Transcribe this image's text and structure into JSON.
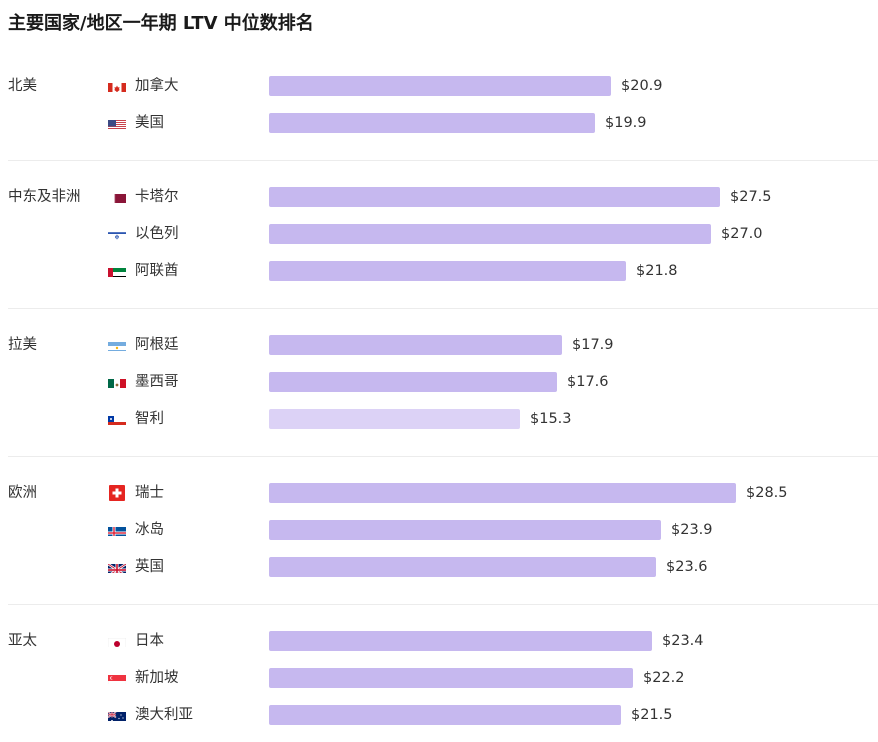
{
  "title": "主要国家/地区一年期 LTV 中位数排名",
  "colors": {
    "bar": "#c6b8ef",
    "bar_highlight_light": "#dcd2f6",
    "divider": "#ececec"
  },
  "groups": [
    {
      "region": "北美",
      "rows": [
        {
          "flag": "flag-canada-icon",
          "country": "加拿大",
          "label": "$20.9",
          "value": 20.9
        },
        {
          "flag": "flag-usa-icon",
          "country": "美国",
          "label": "$19.9",
          "value": 19.9
        }
      ]
    },
    {
      "region": "中东及非洲",
      "rows": [
        {
          "flag": "flag-qatar-icon",
          "country": "卡塔尔",
          "label": "$27.5",
          "value": 27.5
        },
        {
          "flag": "flag-israel-icon",
          "country": "以色列",
          "label": "$27.0",
          "value": 27.0
        },
        {
          "flag": "flag-uae-icon",
          "country": "阿联酋",
          "label": "$21.8",
          "value": 21.8
        }
      ]
    },
    {
      "region": "拉美",
      "rows": [
        {
          "flag": "flag-argentina-icon",
          "country": "阿根廷",
          "label": "$17.9",
          "value": 17.9
        },
        {
          "flag": "flag-mexico-icon",
          "country": "墨西哥",
          "label": "$17.6",
          "value": 17.6
        },
        {
          "flag": "flag-chile-icon",
          "country": "智利",
          "label": "$15.3",
          "value": 15.3,
          "light": true
        }
      ]
    },
    {
      "region": "欧洲",
      "rows": [
        {
          "flag": "flag-switzerland-icon",
          "country": "瑞士",
          "label": "$28.5",
          "value": 28.5
        },
        {
          "flag": "flag-iceland-icon",
          "country": "冰岛",
          "label": "$23.9",
          "value": 23.9
        },
        {
          "flag": "flag-uk-icon",
          "country": "英国",
          "label": "$23.6",
          "value": 23.6
        }
      ]
    },
    {
      "region": "亚太",
      "rows": [
        {
          "flag": "flag-japan-icon",
          "country": "日本",
          "label": "$23.4",
          "value": 23.4
        },
        {
          "flag": "flag-singapore-icon",
          "country": "新加坡",
          "label": "$22.2",
          "value": 22.2
        },
        {
          "flag": "flag-australia-icon",
          "country": "澳大利亚",
          "label": "$21.5",
          "value": 21.5
        }
      ]
    }
  ],
  "chart_data": {
    "type": "bar",
    "orientation": "horizontal",
    "title": "主要国家/地区一年期 LTV 中位数排名",
    "xlabel": "",
    "ylabel": "",
    "grid": false,
    "legend": null,
    "value_format": "$",
    "groups": [
      "北美",
      "中东及非洲",
      "拉美",
      "欧洲",
      "亚太"
    ],
    "categories": [
      "加拿大",
      "美国",
      "卡塔尔",
      "以色列",
      "阿联酋",
      "阿根廷",
      "墨西哥",
      "智利",
      "瑞士",
      "冰岛",
      "英国",
      "日本",
      "新加坡",
      "澳大利亚"
    ],
    "category_groups": [
      "北美",
      "北美",
      "中东及非洲",
      "中东及非洲",
      "中东及非洲",
      "拉美",
      "拉美",
      "拉美",
      "欧洲",
      "欧洲",
      "欧洲",
      "亚太",
      "亚太",
      "亚太"
    ],
    "values": [
      20.9,
      19.9,
      27.5,
      27.0,
      21.8,
      17.9,
      17.6,
      15.3,
      28.5,
      23.9,
      23.6,
      23.4,
      22.2,
      21.5
    ],
    "data_labels": [
      "$20.9",
      "$19.9",
      "$27.5",
      "$27.0",
      "$21.8",
      "$17.9",
      "$17.6",
      "$15.3",
      "$28.5",
      "$23.9",
      "$23.6",
      "$23.4",
      "$22.2",
      "$21.5"
    ]
  }
}
